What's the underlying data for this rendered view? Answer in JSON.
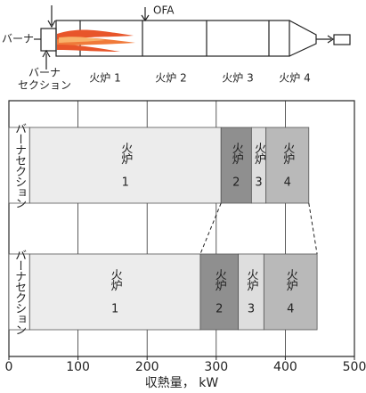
{
  "diagram": {
    "burner": "バーナ",
    "burner_section": [
      "バーナ",
      "セクション"
    ],
    "ofa": "OFA",
    "sections": [
      "火炉 1",
      "火炉 2",
      "火炉 3",
      "火炉 4"
    ]
  },
  "chart_data": {
    "type": "bar",
    "orientation": "horizontal",
    "stacked": true,
    "x_label": "収熱量， kW",
    "categories": [
      null,
      null
    ],
    "series": [
      {
        "name": "バーナセクション",
        "color": "#ffffff",
        "values": [
          30,
          30
        ]
      },
      {
        "name": "火炉 1",
        "color": "#ececec",
        "values": [
          277,
          247
        ]
      },
      {
        "name": "火炉 2",
        "color": "#8f8f8f",
        "values": [
          44,
          55
        ]
      },
      {
        "name": "火炉 3",
        "color": "#dedede",
        "values": [
          21,
          37
        ]
      },
      {
        "name": "火炉 4",
        "color": "#b9b9b9",
        "values": [
          62,
          77
        ]
      }
    ],
    "xlim": [
      0,
      500
    ],
    "xticks": [
      0,
      100,
      200,
      300,
      400,
      500
    ],
    "grid": true
  }
}
